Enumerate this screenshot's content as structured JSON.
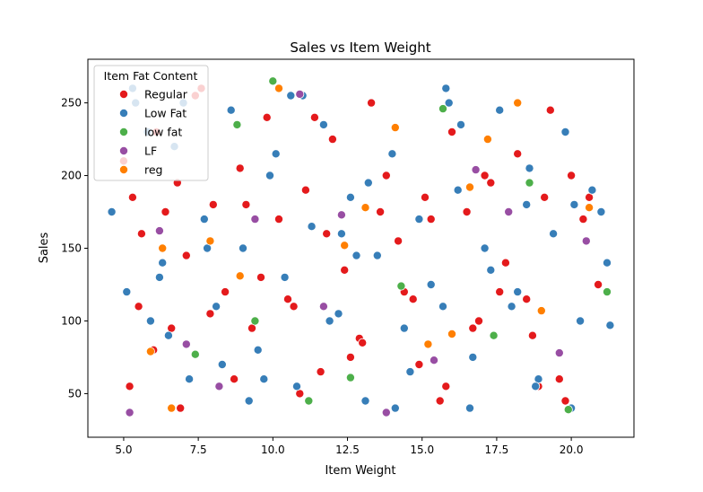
{
  "chart_data": {
    "type": "scatter",
    "title": "Sales vs Item Weight",
    "xlabel": "Item Weight",
    "ylabel": "Sales",
    "xlim": [
      3.8,
      22.1
    ],
    "ylim": [
      20,
      280
    ],
    "x_ticks": [
      "5.0",
      "7.5",
      "10.0",
      "12.5",
      "15.0",
      "17.5",
      "20.0"
    ],
    "x_tick_values": [
      5,
      7.5,
      10,
      12.5,
      15,
      17.5,
      20
    ],
    "y_ticks": [
      "50",
      "100",
      "150",
      "200",
      "250"
    ],
    "y_tick_values": [
      50,
      100,
      150,
      200,
      250
    ],
    "grid": false,
    "legend": {
      "title": "Item Fat Content",
      "position": "top-left",
      "entries": [
        {
          "label": "Regular",
          "color": "#e41a1c"
        },
        {
          "label": "Low Fat",
          "color": "#377eb8"
        },
        {
          "label": "low fat",
          "color": "#4daf4a"
        },
        {
          "label": "LF",
          "color": "#984ea3"
        },
        {
          "label": "reg",
          "color": "#ff7f00"
        }
      ]
    },
    "series": [
      {
        "name": "Regular",
        "color": "#e41a1c",
        "x": [
          5.0,
          5.3,
          5.6,
          6.1,
          6.4,
          6.8,
          7.1,
          7.6,
          8.0,
          8.4,
          8.9,
          9.3,
          9.8,
          10.2,
          10.7,
          11.1,
          11.6,
          12.0,
          12.4,
          12.9,
          13.3,
          13.8,
          14.2,
          14.7,
          15.1,
          15.6,
          16.0,
          16.5,
          16.9,
          17.3,
          17.8,
          18.2,
          18.7,
          19.1,
          19.6,
          20.0,
          20.4,
          20.9,
          5.5,
          6.6,
          7.9,
          9.1,
          10.5,
          11.8,
          13.0,
          14.4,
          15.8,
          17.1,
          18.5,
          19.8,
          5.2,
          6.9,
          8.7,
          10.9,
          12.6,
          14.9,
          16.7,
          18.9,
          20.6,
          7.4,
          11.4,
          15.3,
          19.3,
          6.0,
          9.6,
          13.6,
          17.6
        ],
        "y": [
          210,
          185,
          160,
          230,
          175,
          195,
          145,
          260,
          180,
          120,
          205,
          95,
          240,
          170,
          110,
          190,
          65,
          225,
          135,
          88,
          250,
          200,
          155,
          115,
          185,
          45,
          230,
          175,
          100,
          195,
          140,
          215,
          90,
          185,
          60,
          200,
          170,
          125,
          110,
          95,
          105,
          180,
          115,
          160,
          85,
          120,
          55,
          200,
          115,
          45,
          55,
          40,
          60,
          50,
          75,
          70,
          95,
          55,
          185,
          255,
          240,
          170,
          245,
          80,
          130,
          175,
          120
        ]
      },
      {
        "name": "Low Fat",
        "color": "#377eb8",
        "x": [
          4.6,
          5.1,
          5.4,
          5.9,
          6.3,
          6.7,
          7.2,
          7.7,
          8.1,
          8.6,
          9.0,
          9.5,
          9.9,
          10.4,
          10.8,
          11.3,
          11.7,
          12.2,
          12.6,
          13.1,
          13.5,
          14.0,
          14.4,
          14.9,
          15.3,
          15.8,
          16.2,
          16.7,
          17.1,
          17.6,
          18.0,
          18.5,
          18.9,
          19.4,
          19.8,
          20.3,
          20.7,
          21.2,
          5.3,
          6.5,
          7.8,
          9.2,
          10.6,
          11.9,
          13.2,
          14.6,
          15.9,
          17.3,
          18.6,
          20.0,
          21.3,
          6.2,
          8.3,
          10.1,
          12.3,
          14.1,
          16.3,
          18.2,
          20.1,
          7.0,
          9.7,
          12.8,
          15.7,
          18.8,
          21.0,
          5.8,
          11.0,
          16.6
        ],
        "y": [
          175,
          120,
          250,
          100,
          140,
          220,
          60,
          170,
          110,
          245,
          150,
          80,
          200,
          130,
          55,
          165,
          235,
          105,
          185,
          45,
          145,
          215,
          95,
          170,
          125,
          260,
          190,
          75,
          150,
          245,
          110,
          180,
          60,
          160,
          230,
          100,
          190,
          140,
          260,
          90,
          150,
          45,
          255,
          100,
          195,
          65,
          250,
          135,
          205,
          40,
          97,
          130,
          70,
          215,
          160,
          40,
          235,
          120,
          180,
          250,
          60,
          145,
          110,
          55,
          175,
          230,
          255,
          40
        ]
      },
      {
        "name": "low fat",
        "color": "#4daf4a",
        "x": [
          7.4,
          8.8,
          10.0,
          11.2,
          12.6,
          14.3,
          15.7,
          17.4,
          18.6,
          19.9,
          21.2,
          9.4
        ],
        "y": [
          77,
          235,
          265,
          45,
          61,
          124,
          246,
          90,
          195,
          39,
          120,
          100
        ]
      },
      {
        "name": "LF",
        "color": "#984ea3",
        "x": [
          5.2,
          6.2,
          7.1,
          8.2,
          9.4,
          10.9,
          12.3,
          13.8,
          15.4,
          16.8,
          17.9,
          19.6,
          20.5,
          11.7
        ],
        "y": [
          37,
          162,
          84,
          55,
          170,
          256,
          173,
          37,
          73,
          204,
          175,
          78,
          155,
          110
        ]
      },
      {
        "name": "reg",
        "color": "#ff7f00",
        "x": [
          5.9,
          6.3,
          6.6,
          7.9,
          8.9,
          10.2,
          12.4,
          13.1,
          14.1,
          15.2,
          16.6,
          17.2,
          18.2,
          19.0,
          20.6,
          16.0
        ],
        "y": [
          79,
          150,
          40,
          155,
          131,
          260,
          152,
          178,
          233,
          84,
          192,
          225,
          250,
          107,
          178,
          91
        ]
      }
    ]
  }
}
